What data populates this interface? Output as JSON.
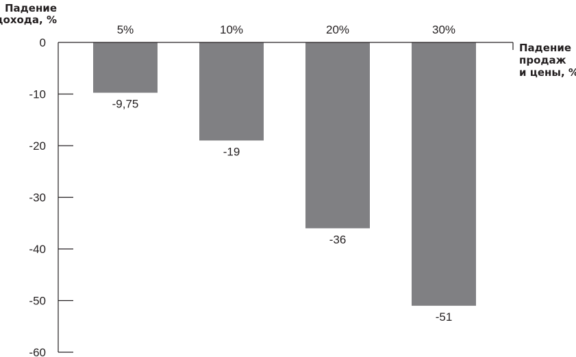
{
  "chart_data": {
    "type": "bar",
    "ylabel": [
      "Падение",
      "дохода, %"
    ],
    "xlabel": [
      "Падение",
      "продаж",
      "и цены, %"
    ],
    "categories": [
      "5%",
      "10%",
      "20%",
      "30%"
    ],
    "values": [
      -9.75,
      -19,
      -36,
      -51
    ],
    "data_labels": [
      "-9,75",
      "-19",
      "-36",
      "-51"
    ],
    "ylim": [
      -60,
      0
    ],
    "yticks": [
      0,
      -10,
      -20,
      -30,
      -40,
      -50,
      -60
    ],
    "ytick_labels": [
      "0",
      "-10",
      "-20",
      "-30",
      "-40",
      "-50",
      "-60"
    ],
    "category_axis_position": "top",
    "grid": false,
    "bar_color": "#808083",
    "axis_color": "#231f20"
  }
}
